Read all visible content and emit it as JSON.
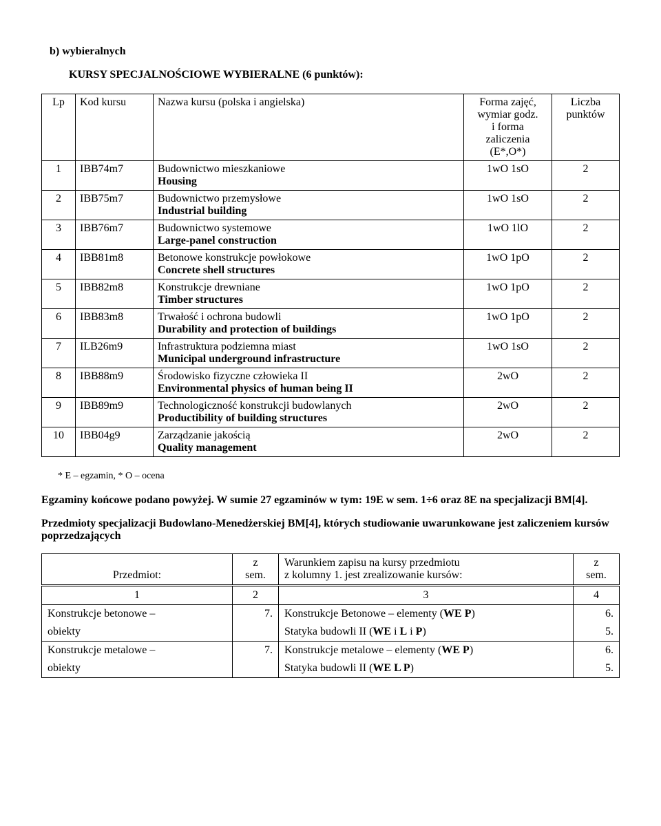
{
  "heading_b": "b)   wybieralnych",
  "heading_kursy": "KURSY SPECJALNOŚCIOWE WYBIERALNE (6 punktów):",
  "cols": {
    "lp": "Lp",
    "kod": "Kod kursu",
    "nazwa": "Nazwa kursu (polska i angielska)",
    "forma_l1": "Forma zajęć,",
    "forma_l2": "wymiar godz.",
    "forma_l3": "i forma",
    "forma_l4": "zaliczenia",
    "forma_l5": "(E*,O*)",
    "liczba_l1": "Liczba",
    "liczba_l2": "punktów"
  },
  "rows": [
    {
      "lp": "1",
      "kod": "IBB74m7",
      "pl": "Budownictwo mieszkaniowe",
      "en": "Housing",
      "forma": "1wO 1sO",
      "pkt": "2"
    },
    {
      "lp": "2",
      "kod": "IBB75m7",
      "pl": "Budownictwo przemysłowe",
      "en": "Industrial  building",
      "forma": "1wO 1sO",
      "pkt": "2"
    },
    {
      "lp": "3",
      "kod": "IBB76m7",
      "pl": "Budownictwo systemowe",
      "en": "Large-panel construction",
      "forma": "1wO 1lO",
      "pkt": "2"
    },
    {
      "lp": "4",
      "kod": "IBB81m8",
      "pl": "Betonowe konstrukcje powłokowe",
      "en": "Concrete shell structures",
      "forma": "1wO 1pO",
      "pkt": "2"
    },
    {
      "lp": "5",
      "kod": "IBB82m8",
      "pl": "Konstrukcje drewniane",
      "en": "Timber structures",
      "forma": "1wO 1pO",
      "pkt": "2"
    },
    {
      "lp": "6",
      "kod": "IBB83m8",
      "pl": "Trwałość i ochrona budowli",
      "en": "Durability and protection of buildings",
      "forma": "1wO 1pO",
      "pkt": "2"
    },
    {
      "lp": "7",
      "kod": "ILB26m9",
      "pl": "Infrastruktura podziemna miast",
      "en": "Municipal underground infrastructure",
      "forma": "1wO 1sO",
      "pkt": "2",
      "en_narrow": true
    },
    {
      "lp": "8",
      "kod": "IBB88m9",
      "pl": "Środowisko fizyczne człowieka II",
      "en": "Environmental physics of human being II",
      "forma": "2wO",
      "pkt": "2",
      "en_narrow": true
    },
    {
      "lp": "9",
      "kod": "IBB89m9",
      "pl": "Technologiczność konstrukcji budowlanych",
      "en": "Productibility of building structures",
      "forma": "2wO",
      "pkt": "2"
    },
    {
      "lp": "10",
      "kod": "IBB04g9",
      "pl": "Zarządzanie jakością",
      "en": "Quality management",
      "forma": "2wO",
      "pkt": "2"
    }
  ],
  "footnote": "* E – egzamin, * O – ocena",
  "egzaminy": "Egzaminy końcowe podano powyżej. W sumie 27 egzaminów w tym: 19E w sem. 1÷6 oraz 8E na specjalizacji BM[4].",
  "przedmioty_heading": "Przedmioty specjalizacji Budowlano-Menedżerskiej BM[4], których studiowanie uwarunkowane jest zaliczeniem kursów poprzedzających",
  "t2": {
    "h1": "Przedmiot:",
    "h2_l1": "z",
    "h2_l2": "sem.",
    "h3_l1": "Warunkiem zapisu na kursy przedmiotu",
    "h3_l2": "z kolumny 1. jest zrealizowanie kursów:",
    "h4_l1": "z",
    "h4_l2": "sem.",
    "numrow": [
      "1",
      "2",
      "3",
      "4"
    ],
    "rows": [
      {
        "p_l1": "Konstrukcje betonowe –",
        "p_l2": "obiekty",
        "sem": "7.",
        "w_l1_a": "Konstrukcje Betonowe – elementy (",
        "w_l1_b": "WE P",
        "w_l1_c": ")",
        "w_l2_a": "Statyka budowli II (",
        "w_l2_b": "WE",
        "w_l2_c": " i ",
        "w_l2_d": "L",
        "w_l2_e": " i ",
        "w_l2_f": "P",
        "w_l2_g": ")",
        "s_l1": "6.",
        "s_l2": "5."
      },
      {
        "p_l1": "Konstrukcje metalowe –",
        "p_l2": "obiekty",
        "sem": "7.",
        "w_l1_a": "Konstrukcje metalowe – elementy (",
        "w_l1_b": "WE P",
        "w_l1_c": ")",
        "w_l2_a": "Statyka budowli II (",
        "w_l2_b": "WE L P",
        "w_l2_c": ")",
        "s_l1": "6.",
        "s_l2": "5."
      }
    ]
  }
}
